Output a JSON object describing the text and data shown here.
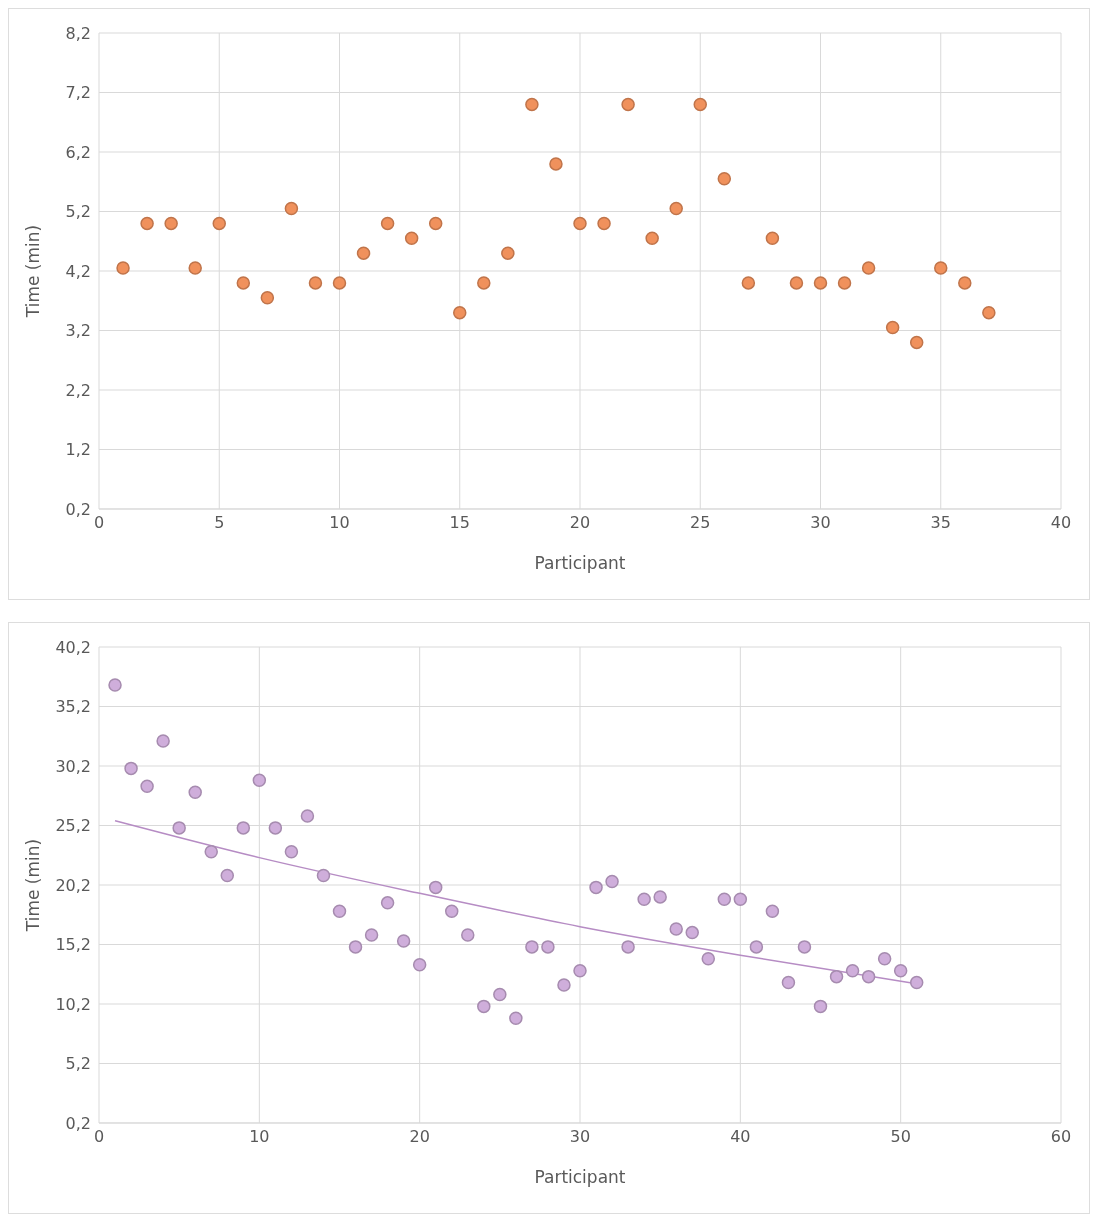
{
  "chart_data": [
    {
      "type": "scatter",
      "xlabel": "Participant",
      "ylabel": "Time (min)",
      "color": "#f0915c",
      "marker": "circle",
      "grid": true,
      "x": [
        1,
        2,
        3,
        4,
        5,
        6,
        7,
        8,
        9,
        10,
        11,
        12,
        13,
        14,
        15,
        16,
        17,
        18,
        19,
        20,
        21,
        22,
        23,
        24,
        25,
        26,
        27,
        28,
        29,
        30,
        31,
        32,
        33,
        34,
        35,
        36,
        37
      ],
      "values": [
        4.25,
        5,
        5,
        4.25,
        5,
        4,
        3.75,
        5.25,
        4,
        4,
        4.5,
        5,
        4.75,
        5,
        3.5,
        4,
        4.5,
        7,
        6,
        5,
        5,
        7,
        4.75,
        5.25,
        7,
        5.75,
        4,
        4.75,
        4,
        4,
        4,
        4.25,
        3.25,
        3,
        4.25,
        4,
        3.5
      ],
      "xlim": [
        0,
        40
      ],
      "xticks": [
        0,
        5,
        10,
        15,
        20,
        25,
        30,
        35,
        40
      ],
      "ylim": [
        0.2,
        8.2
      ],
      "yticks": [
        {
          "value": 0.2,
          "label": "0,2"
        },
        {
          "value": 1.2,
          "label": "1,2"
        },
        {
          "value": 2.2,
          "label": "2,2"
        },
        {
          "value": 3.2,
          "label": "3,2"
        },
        {
          "value": 4.2,
          "label": "4,2"
        },
        {
          "value": 5.2,
          "label": "5,2"
        },
        {
          "value": 6.2,
          "label": "6,2"
        },
        {
          "value": 7.2,
          "label": "7,2"
        },
        {
          "value": 8.2,
          "label": "8,2"
        }
      ]
    },
    {
      "type": "scatter",
      "xlabel": "Participant",
      "ylabel": "Time (min)",
      "grid": true,
      "series": [
        {
          "color": "#cfaedb",
          "marker": "circle",
          "x": [
            1,
            2,
            3,
            4,
            5,
            6,
            7,
            8,
            9,
            10,
            11,
            12,
            13,
            14,
            15,
            16,
            17,
            18,
            19,
            20,
            21,
            22,
            23,
            24,
            25,
            26,
            27,
            28,
            29,
            30,
            31,
            32,
            33,
            34,
            35,
            36,
            37,
            38,
            39,
            40,
            41,
            42,
            43,
            44,
            45,
            46,
            47,
            48,
            49,
            50,
            51
          ],
          "values": [
            37,
            30,
            28.5,
            32.3,
            25,
            28,
            23,
            21,
            25,
            29,
            25,
            23,
            26,
            21,
            18,
            15,
            16,
            18.7,
            15.5,
            13.5,
            20,
            18,
            16,
            10,
            11,
            9,
            15,
            15,
            11.8,
            13,
            20,
            20.5,
            15,
            19,
            19.2,
            16.5,
            16.2,
            14,
            19,
            19,
            15,
            18,
            12,
            15,
            10,
            12.5,
            13,
            12.5,
            14,
            13,
            12
          ]
        },
        {
          "type": "line",
          "marker": "none",
          "color": "#b68cc4",
          "x": [
            1,
            10,
            20,
            30,
            40,
            51
          ],
          "values": [
            25.6,
            22.5,
            19.5,
            16.7,
            14.3,
            11.9
          ]
        }
      ],
      "xlim": [
        0,
        60
      ],
      "xticks": [
        0,
        10,
        20,
        30,
        40,
        50,
        60
      ],
      "ylim": [
        0.2,
        40.2
      ],
      "yticks": [
        {
          "value": 0.2,
          "label": "0,2"
        },
        {
          "value": 5.2,
          "label": "5,2"
        },
        {
          "value": 10.2,
          "label": "10,2"
        },
        {
          "value": 15.2,
          "label": "15,2"
        },
        {
          "value": 20.2,
          "label": "20,2"
        },
        {
          "value": 25.2,
          "label": "25,2"
        },
        {
          "value": 30.2,
          "label": "30,2"
        },
        {
          "value": 35.2,
          "label": "35,2"
        },
        {
          "value": 40.2,
          "label": "40,2"
        }
      ]
    }
  ]
}
